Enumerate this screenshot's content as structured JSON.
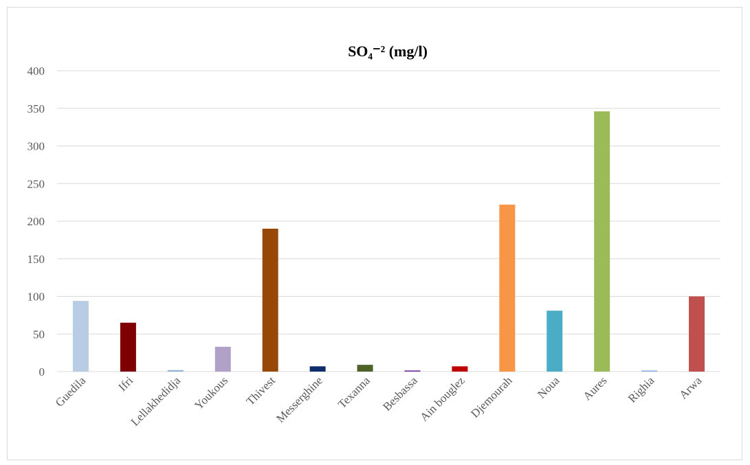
{
  "chart_data": {
    "type": "bar",
    "title": "SO₄⁻² (mg/l)",
    "xlabel": "",
    "ylabel": "",
    "ylim": [
      0,
      400
    ],
    "yticks": [
      0,
      50,
      100,
      150,
      200,
      250,
      300,
      350,
      400
    ],
    "grid": true,
    "legend": "none",
    "categories": [
      "Guedila",
      "Ifri",
      "Lellakhedidja",
      "Youkous",
      "Thivest",
      "Messerghine",
      "Texanna",
      "Besbassa",
      "Ain bouglez",
      "Djemourah",
      "Noua",
      "Aures",
      "Righia",
      "Arwa"
    ],
    "values": [
      94,
      65,
      2,
      33,
      190,
      7,
      9,
      1.5,
      7,
      222,
      81,
      346,
      1.5,
      100
    ],
    "colors": [
      "#b8cce4",
      "#7f0000",
      "#95b3d7",
      "#b1a0c7",
      "#974806",
      "#0f2c6b",
      "#4f6228",
      "#7030a0",
      "#c00000",
      "#f79646",
      "#4bacc6",
      "#9bbb59",
      "#8db3e2",
      "#c0504d"
    ]
  }
}
